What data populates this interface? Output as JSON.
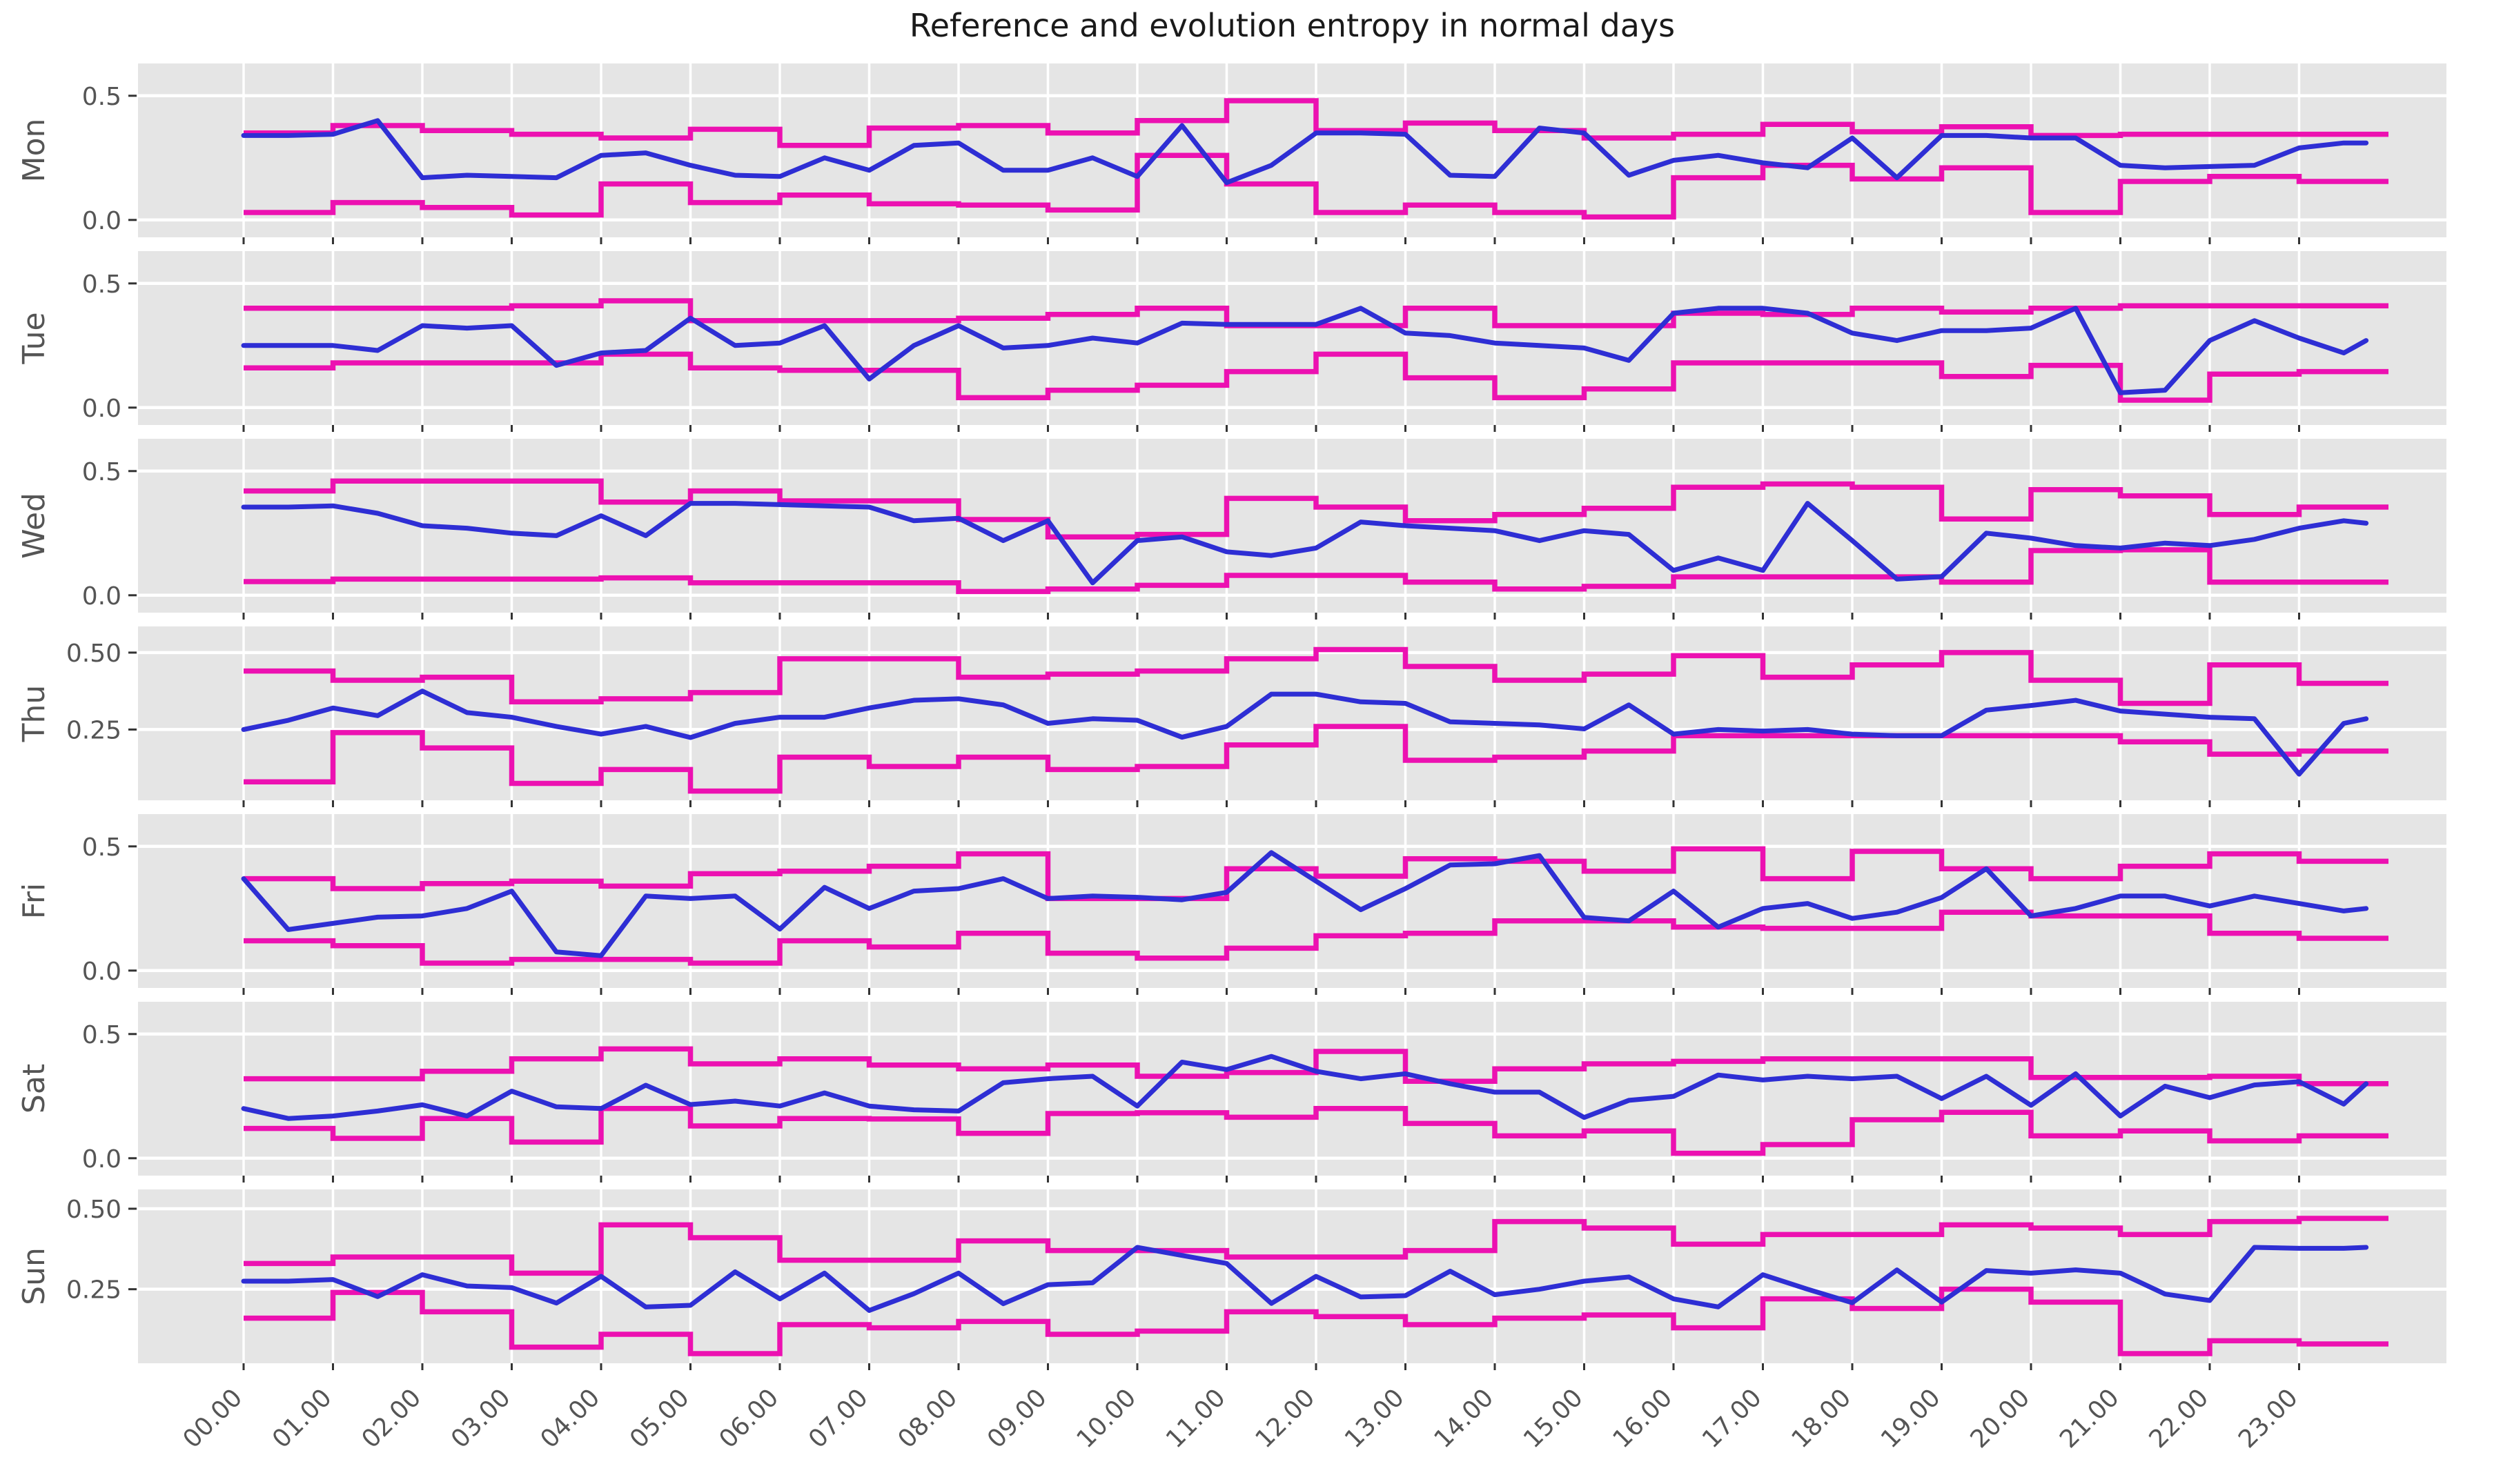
{
  "title": "Reference and evolution entropy  in normal days",
  "colors": {
    "evolution_line": "#2e2ed4",
    "reference_line": "#ec11b1",
    "panel_background": "#e5e5e5",
    "grid_line": "#ffffff",
    "tick_text": "#555555",
    "title_text": "#1a1a1a",
    "figure_background": "#ffffff"
  },
  "x_axis": {
    "tick_labels": [
      "00.00",
      "01.00",
      "02.00",
      "03.00",
      "04.00",
      "05.00",
      "06.00",
      "07.00",
      "08.00",
      "09.00",
      "10.00",
      "11.00",
      "12.00",
      "13.00",
      "14.00",
      "15.00",
      "16.00",
      "17.00",
      "18.00",
      "19.00",
      "20.00",
      "21.00",
      "22.00",
      "23.00"
    ],
    "hours_start": 0,
    "hours_end": 24
  },
  "chart_data": [
    {
      "type": "line",
      "day": "Mon",
      "y_ticks": [
        {
          "label": "0.5",
          "value": 0.5
        },
        {
          "label": "0.0",
          "value": 0.0
        }
      ],
      "ylim": [
        -0.07,
        0.63
      ],
      "series": [
        {
          "name": "reference-upper",
          "style": "step",
          "values": [
            0.35,
            0.38,
            0.36,
            0.345,
            0.33,
            0.365,
            0.3,
            0.37,
            0.38,
            0.35,
            0.4,
            0.48,
            0.36,
            0.39,
            0.36,
            0.33,
            0.345,
            0.385,
            0.355,
            0.375,
            0.34,
            0.345,
            0.345,
            0.345
          ]
        },
        {
          "name": "reference-lower",
          "style": "step",
          "values": [
            0.03,
            0.07,
            0.05,
            0.02,
            0.145,
            0.07,
            0.1,
            0.065,
            0.06,
            0.04,
            0.26,
            0.145,
            0.03,
            0.06,
            0.03,
            0.012,
            0.17,
            0.22,
            0.165,
            0.21,
            0.03,
            0.155,
            0.175,
            0.155
          ]
        },
        {
          "name": "evolution",
          "style": "line",
          "t_step": 0.5,
          "values": [
            0.34,
            0.34,
            0.345,
            0.4,
            0.17,
            0.18,
            0.175,
            0.17,
            0.26,
            0.27,
            0.22,
            0.18,
            0.175,
            0.25,
            0.2,
            0.3,
            0.31,
            0.2,
            0.2,
            0.25,
            0.175,
            0.38,
            0.15,
            0.22,
            0.35,
            0.35,
            0.345,
            0.18,
            0.175,
            0.37,
            0.35,
            0.18,
            0.24,
            0.26,
            0.23,
            0.21,
            0.33,
            0.17,
            0.34,
            0.34,
            0.33,
            0.33,
            0.22,
            0.21,
            0.215,
            0.22,
            0.29,
            0.31
          ],
          "tail": {
            "t": 23.75,
            "v": 0.31
          }
        }
      ]
    },
    {
      "type": "line",
      "day": "Tue",
      "y_ticks": [
        {
          "label": "0.5",
          "value": 0.5
        },
        {
          "label": "0.0",
          "value": 0.0
        }
      ],
      "ylim": [
        -0.07,
        0.63
      ],
      "series": [
        {
          "name": "reference-upper",
          "style": "step",
          "values": [
            0.4,
            0.4,
            0.4,
            0.41,
            0.43,
            0.35,
            0.35,
            0.35,
            0.36,
            0.375,
            0.4,
            0.33,
            0.33,
            0.4,
            0.33,
            0.33,
            0.38,
            0.375,
            0.4,
            0.385,
            0.4,
            0.41,
            0.41,
            0.41
          ]
        },
        {
          "name": "reference-lower",
          "style": "step",
          "values": [
            0.16,
            0.18,
            0.18,
            0.18,
            0.215,
            0.16,
            0.15,
            0.15,
            0.04,
            0.07,
            0.09,
            0.145,
            0.215,
            0.12,
            0.04,
            0.075,
            0.18,
            0.18,
            0.18,
            0.125,
            0.17,
            0.03,
            0.135,
            0.145
          ]
        },
        {
          "name": "evolution",
          "style": "line",
          "t_step": 0.5,
          "values": [
            0.25,
            0.25,
            0.25,
            0.23,
            0.33,
            0.32,
            0.33,
            0.17,
            0.22,
            0.23,
            0.36,
            0.25,
            0.26,
            0.33,
            0.115,
            0.25,
            0.33,
            0.24,
            0.25,
            0.28,
            0.26,
            0.34,
            0.335,
            0.335,
            0.335,
            0.4,
            0.3,
            0.29,
            0.26,
            0.25,
            0.24,
            0.19,
            0.38,
            0.4,
            0.4,
            0.38,
            0.3,
            0.27,
            0.31,
            0.31,
            0.32,
            0.4,
            0.06,
            0.07,
            0.27,
            0.35,
            0.28,
            0.22
          ],
          "tail": {
            "t": 23.75,
            "v": 0.27
          }
        }
      ]
    },
    {
      "type": "line",
      "day": "Wed",
      "y_ticks": [
        {
          "label": "0.5",
          "value": 0.5
        },
        {
          "label": "0.0",
          "value": 0.0
        }
      ],
      "ylim": [
        -0.07,
        0.63
      ],
      "series": [
        {
          "name": "reference-upper",
          "style": "step",
          "values": [
            0.42,
            0.46,
            0.46,
            0.46,
            0.375,
            0.42,
            0.38,
            0.38,
            0.305,
            0.235,
            0.245,
            0.39,
            0.355,
            0.3,
            0.325,
            0.35,
            0.435,
            0.448,
            0.435,
            0.307,
            0.425,
            0.4,
            0.325,
            0.355
          ]
        },
        {
          "name": "reference-lower",
          "style": "step",
          "values": [
            0.055,
            0.065,
            0.065,
            0.065,
            0.07,
            0.05,
            0.05,
            0.05,
            0.015,
            0.025,
            0.04,
            0.08,
            0.08,
            0.053,
            0.025,
            0.036,
            0.074,
            0.074,
            0.074,
            0.053,
            0.18,
            0.183,
            0.053,
            0.053
          ]
        },
        {
          "name": "evolution",
          "style": "line",
          "t_step": 0.5,
          "values": [
            0.355,
            0.355,
            0.36,
            0.33,
            0.28,
            0.27,
            0.25,
            0.24,
            0.32,
            0.24,
            0.37,
            0.37,
            0.365,
            0.36,
            0.355,
            0.3,
            0.31,
            0.22,
            0.3,
            0.05,
            0.22,
            0.235,
            0.175,
            0.16,
            0.19,
            0.295,
            0.28,
            0.27,
            0.26,
            0.22,
            0.26,
            0.245,
            0.1,
            0.15,
            0.1,
            0.37,
            0.22,
            0.065,
            0.075,
            0.25,
            0.23,
            0.2,
            0.19,
            0.21,
            0.2,
            0.225,
            0.27,
            0.3
          ],
          "tail": {
            "t": 23.75,
            "v": 0.29
          }
        }
      ]
    },
    {
      "type": "line",
      "day": "Thu",
      "y_ticks": [
        {
          "label": "0.50",
          "value": 0.5
        },
        {
          "label": "0.25",
          "value": 0.25
        }
      ],
      "ylim": [
        0.02,
        0.585
      ],
      "series": [
        {
          "name": "reference-upper",
          "style": "step",
          "values": [
            0.44,
            0.41,
            0.42,
            0.34,
            0.35,
            0.37,
            0.48,
            0.48,
            0.42,
            0.43,
            0.44,
            0.48,
            0.51,
            0.455,
            0.41,
            0.43,
            0.49,
            0.42,
            0.46,
            0.5,
            0.41,
            0.335,
            0.46,
            0.4
          ]
        },
        {
          "name": "reference-lower",
          "style": "step",
          "values": [
            0.08,
            0.24,
            0.19,
            0.075,
            0.12,
            0.05,
            0.16,
            0.13,
            0.16,
            0.12,
            0.13,
            0.2,
            0.26,
            0.15,
            0.16,
            0.18,
            0.23,
            0.23,
            0.23,
            0.23,
            0.23,
            0.21,
            0.17,
            0.18
          ]
        },
        {
          "name": "evolution",
          "style": "line",
          "t_step": 0.5,
          "values": [
            0.25,
            0.28,
            0.32,
            0.295,
            0.375,
            0.305,
            0.29,
            0.26,
            0.235,
            0.26,
            0.224,
            0.27,
            0.29,
            0.29,
            0.32,
            0.345,
            0.35,
            0.33,
            0.27,
            0.285,
            0.28,
            0.225,
            0.26,
            0.365,
            0.365,
            0.34,
            0.335,
            0.275,
            0.27,
            0.265,
            0.252,
            0.33,
            0.235,
            0.25,
            0.245,
            0.25,
            0.235,
            0.23,
            0.23,
            0.313,
            0.328,
            0.345,
            0.31,
            0.3,
            0.29,
            0.285,
            0.105,
            0.27
          ],
          "tail": {
            "t": 23.75,
            "v": 0.285
          }
        }
      ]
    },
    {
      "type": "line",
      "day": "Fri",
      "y_ticks": [
        {
          "label": "0.5",
          "value": 0.5
        },
        {
          "label": "0.0",
          "value": 0.0
        }
      ],
      "ylim": [
        -0.07,
        0.63
      ],
      "series": [
        {
          "name": "reference-upper",
          "style": "step",
          "values": [
            0.37,
            0.33,
            0.35,
            0.36,
            0.34,
            0.39,
            0.4,
            0.42,
            0.47,
            0.29,
            0.29,
            0.41,
            0.38,
            0.45,
            0.44,
            0.4,
            0.49,
            0.37,
            0.48,
            0.41,
            0.37,
            0.42,
            0.47,
            0.44
          ]
        },
        {
          "name": "reference-lower",
          "style": "step",
          "values": [
            0.12,
            0.1,
            0.03,
            0.045,
            0.045,
            0.03,
            0.12,
            0.095,
            0.15,
            0.07,
            0.05,
            0.09,
            0.14,
            0.15,
            0.2,
            0.2,
            0.175,
            0.17,
            0.17,
            0.235,
            0.22,
            0.22,
            0.15,
            0.13
          ]
        },
        {
          "name": "evolution",
          "style": "line",
          "t_step": 0.5,
          "values": [
            0.37,
            0.165,
            0.19,
            0.215,
            0.22,
            0.25,
            0.32,
            0.075,
            0.06,
            0.3,
            0.29,
            0.3,
            0.167,
            0.335,
            0.25,
            0.32,
            0.33,
            0.37,
            0.29,
            0.3,
            0.295,
            0.285,
            0.315,
            0.475,
            0.36,
            0.245,
            0.33,
            0.425,
            0.43,
            0.463,
            0.214,
            0.2,
            0.32,
            0.175,
            0.25,
            0.27,
            0.21,
            0.235,
            0.294,
            0.41,
            0.22,
            0.25,
            0.3,
            0.3,
            0.26,
            0.3,
            0.27,
            0.24
          ],
          "tail": {
            "t": 23.75,
            "v": 0.25
          }
        }
      ]
    },
    {
      "type": "line",
      "day": "Sat",
      "y_ticks": [
        {
          "label": "0.5",
          "value": 0.5
        },
        {
          "label": "0.0",
          "value": 0.0
        }
      ],
      "ylim": [
        -0.07,
        0.63
      ],
      "series": [
        {
          "name": "reference-upper",
          "style": "step",
          "values": [
            0.32,
            0.32,
            0.35,
            0.4,
            0.44,
            0.38,
            0.4,
            0.375,
            0.36,
            0.375,
            0.33,
            0.345,
            0.43,
            0.31,
            0.36,
            0.38,
            0.39,
            0.4,
            0.4,
            0.4,
            0.325,
            0.325,
            0.33,
            0.3
          ]
        },
        {
          "name": "reference-lower",
          "style": "step",
          "values": [
            0.12,
            0.08,
            0.16,
            0.065,
            0.2,
            0.13,
            0.16,
            0.158,
            0.1,
            0.18,
            0.183,
            0.165,
            0.2,
            0.14,
            0.09,
            0.11,
            0.02,
            0.055,
            0.155,
            0.185,
            0.09,
            0.11,
            0.07,
            0.09
          ]
        },
        {
          "name": "evolution",
          "style": "line",
          "t_step": 0.5,
          "values": [
            0.2,
            0.16,
            0.17,
            0.19,
            0.215,
            0.17,
            0.27,
            0.207,
            0.2,
            0.294,
            0.216,
            0.23,
            0.21,
            0.263,
            0.21,
            0.195,
            0.19,
            0.304,
            0.32,
            0.33,
            0.21,
            0.387,
            0.357,
            0.41,
            0.35,
            0.32,
            0.34,
            0.3,
            0.266,
            0.266,
            0.164,
            0.233,
            0.249,
            0.335,
            0.315,
            0.33,
            0.32,
            0.33,
            0.24,
            0.33,
            0.213,
            0.34,
            0.17,
            0.29,
            0.244,
            0.295,
            0.308,
            0.218
          ],
          "tail": {
            "t": 23.75,
            "v": 0.3
          }
        }
      ]
    },
    {
      "type": "line",
      "day": "Sun",
      "y_ticks": [
        {
          "label": "0.50",
          "value": 0.5
        },
        {
          "label": "0.25",
          "value": 0.25
        }
      ],
      "ylim": [
        0.02,
        0.56
      ],
      "series": [
        {
          "name": "reference-upper",
          "style": "step",
          "values": [
            0.33,
            0.35,
            0.35,
            0.3,
            0.45,
            0.41,
            0.34,
            0.34,
            0.4,
            0.37,
            0.37,
            0.35,
            0.35,
            0.37,
            0.46,
            0.44,
            0.39,
            0.42,
            0.42,
            0.45,
            0.44,
            0.42,
            0.46,
            0.47
          ]
        },
        {
          "name": "reference-lower",
          "style": "step",
          "values": [
            0.16,
            0.24,
            0.18,
            0.07,
            0.11,
            0.05,
            0.14,
            0.13,
            0.15,
            0.11,
            0.12,
            0.18,
            0.165,
            0.14,
            0.16,
            0.17,
            0.13,
            0.22,
            0.19,
            0.25,
            0.21,
            0.05,
            0.09,
            0.08
          ]
        },
        {
          "name": "evolution",
          "style": "line",
          "t_step": 0.5,
          "values": [
            0.275,
            0.275,
            0.28,
            0.227,
            0.295,
            0.26,
            0.255,
            0.207,
            0.29,
            0.195,
            0.2,
            0.304,
            0.22,
            0.3,
            0.184,
            0.236,
            0.3,
            0.205,
            0.264,
            0.27,
            0.38,
            0.355,
            0.33,
            0.206,
            0.29,
            0.226,
            0.23,
            0.306,
            0.233,
            0.25,
            0.275,
            0.288,
            0.22,
            0.195,
            0.295,
            0.25,
            0.208,
            0.31,
            0.21,
            0.308,
            0.3,
            0.31,
            0.3,
            0.235,
            0.215,
            0.38,
            0.377,
            0.377
          ],
          "tail": {
            "t": 23.75,
            "v": 0.38
          }
        }
      ]
    }
  ]
}
